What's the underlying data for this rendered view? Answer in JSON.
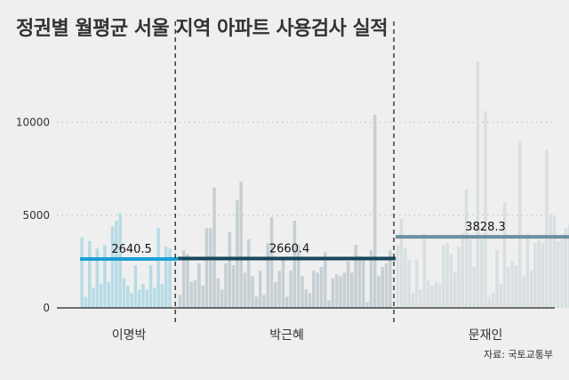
{
  "chart_data": {
    "type": "bar",
    "title": "정권별 월평균 서울 지역 아파트 사용검사 실적",
    "ylim": [
      0,
      13500
    ],
    "yticks": [
      0,
      5000,
      10000
    ],
    "ytick_labels": [
      "0",
      "5000",
      "10000"
    ],
    "grid": true,
    "source": "자료: 국토교통부",
    "periods": [
      {
        "name": "이명박",
        "bar_color": "#b7dbe6",
        "avg_color": "#1ba0d5",
        "average": 2640.5,
        "average_label": "2640.5",
        "values": [
          3800,
          600,
          3600,
          1100,
          3200,
          1300,
          3400,
          1400,
          4400,
          4700,
          5100,
          1600,
          1200,
          800,
          2300,
          1000,
          1300,
          1000,
          2300,
          1100,
          4300,
          1300,
          3300,
          3200
        ]
      },
      {
        "name": "박근혜",
        "bar_color": "#c6cfd3",
        "avg_color": "#17475a",
        "average": 2660.4,
        "average_label": "2660.4",
        "values": [
          700,
          3100,
          2900,
          1400,
          1500,
          2400,
          1200,
          4300,
          4300,
          6500,
          1600,
          1000,
          2400,
          4100,
          2300,
          5800,
          6800,
          1900,
          3700,
          1700,
          600,
          2000,
          700,
          3500,
          4900,
          1400,
          2000,
          2600,
          600,
          2000,
          4700,
          3400,
          1700,
          1000,
          800,
          2000,
          1900,
          2200,
          3000,
          400,
          1600,
          1800,
          1700,
          1900,
          2500,
          1900,
          3400,
          2800,
          2700,
          300,
          3100,
          10400,
          1700,
          2200,
          2400,
          3100
        ]
      },
      {
        "name": "문재인",
        "bar_color": "#d9dfe1",
        "avg_color": "#6b8fa1",
        "average": 3828.3,
        "average_label": "3828.3",
        "values": [
          3400,
          4800,
          3200,
          2600,
          800,
          2600,
          1000,
          4000,
          1500,
          1200,
          1400,
          1300,
          3400,
          3500,
          2900,
          1900,
          3300,
          4000,
          6400,
          3700,
          2200,
          13300,
          3700,
          10600,
          600,
          800,
          3100,
          1300,
          5700,
          2200,
          2500,
          2300,
          9000,
          1700,
          4000,
          2000,
          3500,
          3700,
          3500,
          8500,
          5000,
          5000,
          3600,
          3700,
          4300,
          4500,
          4600
        ]
      }
    ]
  }
}
